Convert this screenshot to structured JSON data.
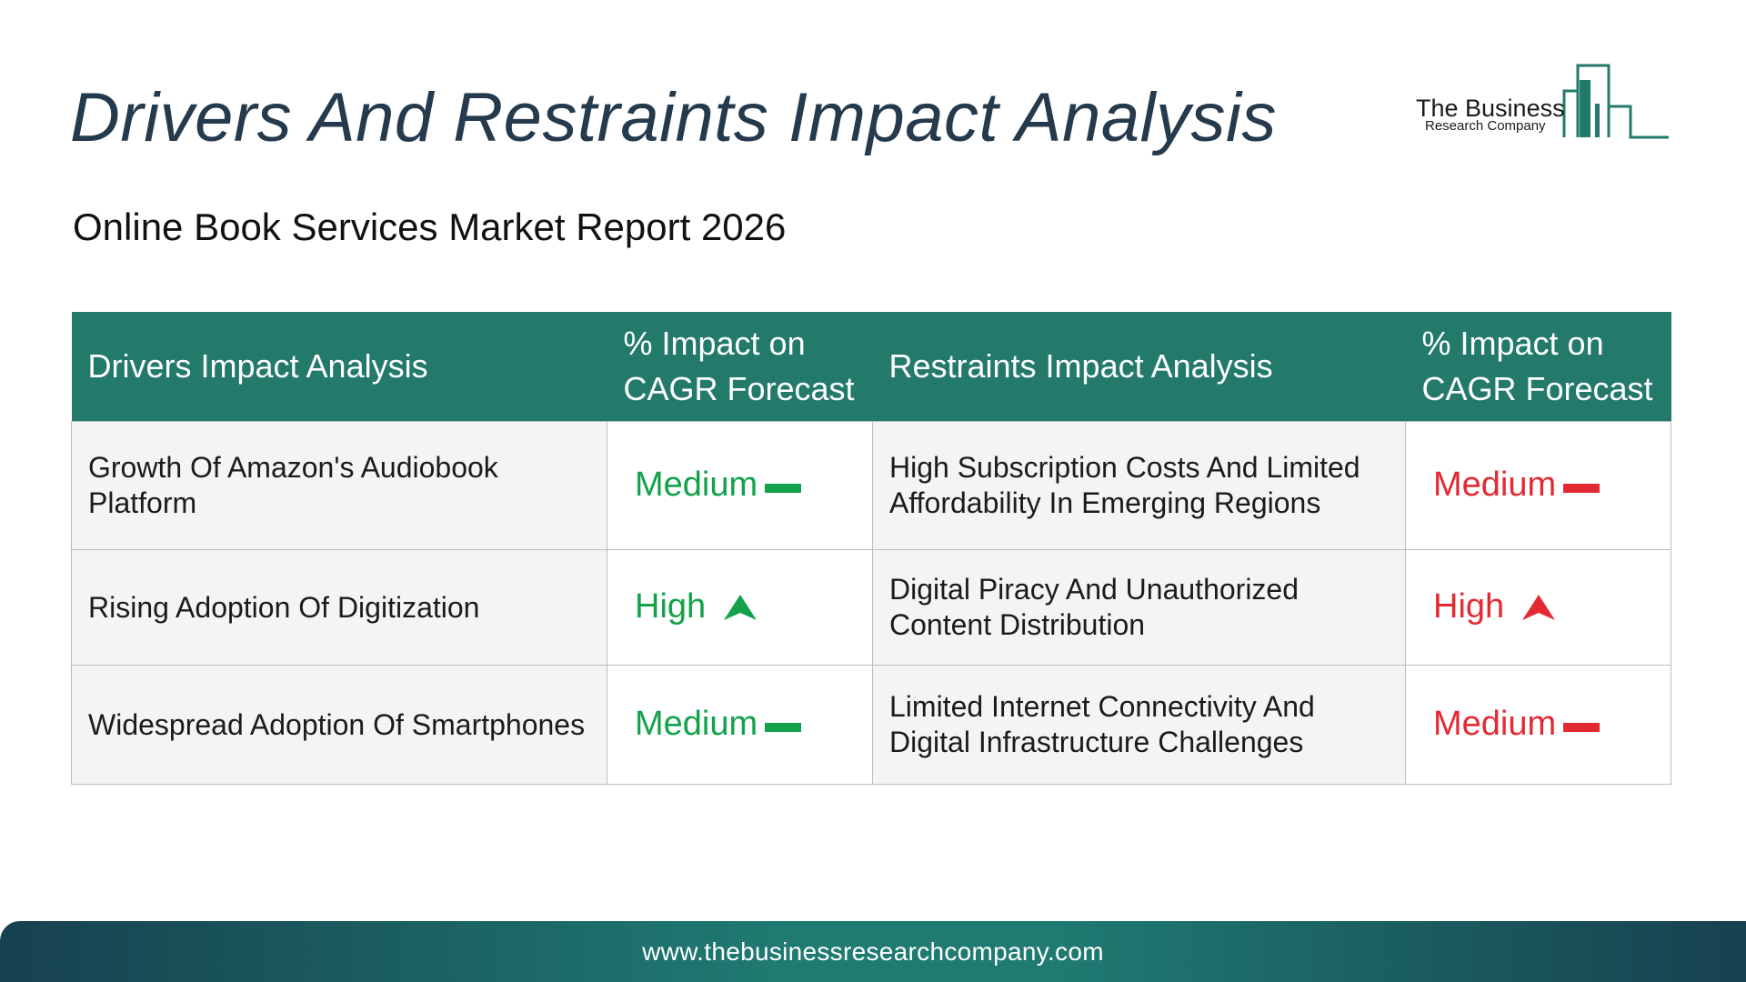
{
  "header": {
    "title": "Drivers And Restraints Impact Analysis",
    "subtitle": "Online Book Services Market Report 2026"
  },
  "logo": {
    "name": "The Business",
    "sub": "Research Company",
    "icon": "building-bars-icon",
    "color": "#237a6b"
  },
  "table": {
    "headers": [
      "Drivers Impact Analysis",
      "% Impact on CAGR Forecast",
      "Restraints Impact Analysis",
      "% Impact on CAGR Forecast"
    ],
    "rows": [
      {
        "driver": "Growth Of Amazon's Audiobook Platform",
        "driver_impact": "Medium",
        "driver_trend": "dash-icon",
        "restraint": "High Subscription Costs And Limited Affordability In Emerging Regions",
        "restraint_impact": "Medium",
        "restraint_trend": "dash-icon"
      },
      {
        "driver": "Rising Adoption Of Digitization",
        "driver_impact": "High",
        "driver_trend": "arrow-up-icon",
        "restraint": "Digital Piracy And Unauthorized Content Distribution",
        "restraint_impact": "High",
        "restraint_trend": "arrow-up-icon"
      },
      {
        "driver": "Widespread Adoption Of Smartphones",
        "driver_impact": "Medium",
        "driver_trend": "dash-icon",
        "restraint": "Limited Internet Connectivity And Digital Infrastructure Challenges",
        "restraint_impact": "Medium",
        "restraint_trend": "dash-icon"
      }
    ]
  },
  "colors": {
    "header_bg": "#237a6b",
    "driver_impact": "#13a14b",
    "restraint_impact": "#e32a33",
    "title": "#253a4c"
  },
  "footer": {
    "url": "www.thebusinessresearchcompany.com"
  }
}
